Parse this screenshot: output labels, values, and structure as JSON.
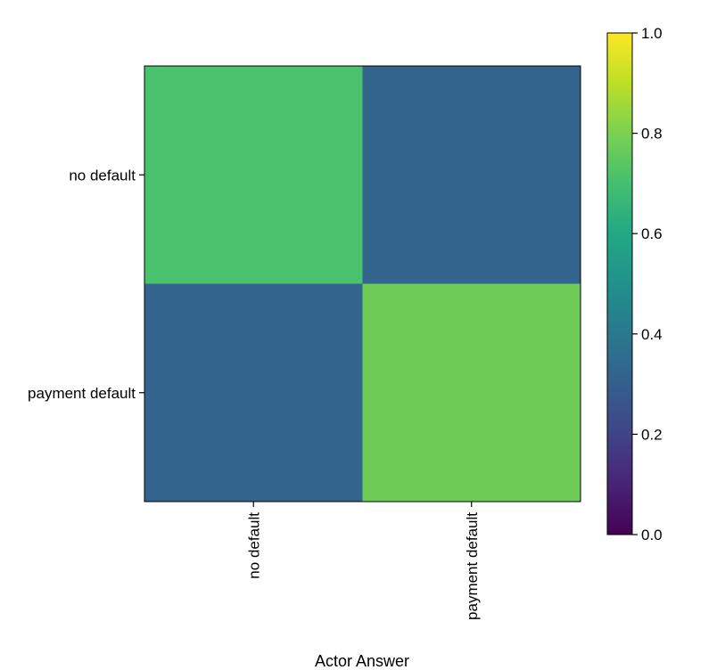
{
  "chart_data": {
    "type": "heatmap",
    "title": "",
    "xlabel": "Actor Answer",
    "ylabel": "",
    "x_categories": [
      "no default",
      "payment default"
    ],
    "y_categories": [
      "no default",
      "payment default"
    ],
    "values": [
      [
        0.71,
        0.32
      ],
      [
        0.32,
        0.78
      ]
    ],
    "colormap": "viridis",
    "colorbar": {
      "range": [
        0.0,
        1.0
      ],
      "ticks": [
        "0.0",
        "0.2",
        "0.4",
        "0.6",
        "0.8",
        "1.0"
      ],
      "tick_values": [
        0.0,
        0.2,
        0.4,
        0.6,
        0.8,
        1.0
      ]
    },
    "grid": false
  }
}
